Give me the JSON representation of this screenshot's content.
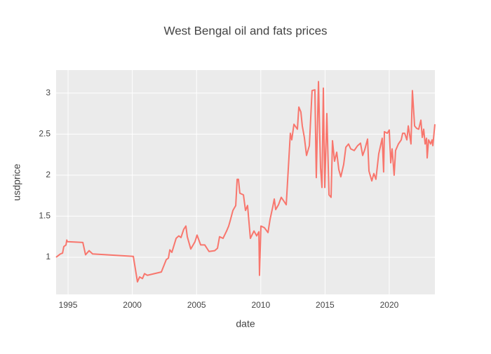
{
  "chart_data": {
    "type": "line",
    "title": "West Bengal oil and fats prices",
    "x_label": "date",
    "y_label": "usdprice",
    "x": [
      1994.07,
      1994.4,
      1994.57,
      1994.67,
      1994.84,
      1994.9,
      1994.95,
      1996.15,
      1996.36,
      1996.64,
      1996.91,
      2000.08,
      2000.4,
      2000.57,
      2000.79,
      2000.95,
      2001.17,
      2002.26,
      2002.64,
      2002.81,
      2002.92,
      2003.08,
      2003.41,
      2003.62,
      2003.79,
      2004.0,
      2004.17,
      2004.28,
      2004.55,
      2004.88,
      2005.04,
      2005.32,
      2005.64,
      2005.97,
      2006.41,
      2006.63,
      2006.79,
      2007.06,
      2007.34,
      2007.5,
      2007.61,
      2007.83,
      2008.05,
      2008.16,
      2008.26,
      2008.37,
      2008.65,
      2008.81,
      2008.97,
      2009.19,
      2009.47,
      2009.68,
      2009.85,
      2009.9,
      2010.01,
      2010.28,
      2010.56,
      2010.72,
      2010.94,
      2011.05,
      2011.16,
      2011.38,
      2011.59,
      2011.81,
      2011.98,
      2012.3,
      2012.41,
      2012.58,
      2012.85,
      2012.96,
      2013.12,
      2013.23,
      2013.39,
      2013.56,
      2013.78,
      2013.99,
      2014.21,
      2014.32,
      2014.49,
      2014.65,
      2014.76,
      2014.87,
      2014.98,
      2015.14,
      2015.31,
      2015.47,
      2015.58,
      2015.74,
      2015.91,
      2016.07,
      2016.23,
      2016.45,
      2016.62,
      2016.83,
      2017.0,
      2017.27,
      2017.54,
      2017.76,
      2017.93,
      2018.09,
      2018.31,
      2018.42,
      2018.64,
      2018.8,
      2018.96,
      2019.18,
      2019.45,
      2019.56,
      2019.62,
      2019.84,
      2020.0,
      2020.11,
      2020.22,
      2020.38,
      2020.49,
      2020.71,
      2020.93,
      2021.04,
      2021.2,
      2021.37,
      2021.48,
      2021.69,
      2021.8,
      2021.97,
      2022.13,
      2022.29,
      2022.46,
      2022.57,
      2022.68,
      2022.79,
      2022.9,
      2022.95,
      2023.06,
      2023.22,
      2023.33,
      2023.39,
      2023.55
    ],
    "series": [
      {
        "color": "#f8766d",
        "values": [
          1.0,
          1.04,
          1.05,
          1.13,
          1.15,
          1.21,
          1.19,
          1.18,
          1.03,
          1.08,
          1.04,
          1.01,
          0.7,
          0.76,
          0.74,
          0.8,
          0.78,
          0.82,
          0.97,
          0.99,
          1.09,
          1.06,
          1.23,
          1.26,
          1.24,
          1.34,
          1.38,
          1.25,
          1.1,
          1.19,
          1.27,
          1.15,
          1.15,
          1.07,
          1.08,
          1.11,
          1.25,
          1.23,
          1.32,
          1.38,
          1.44,
          1.57,
          1.63,
          1.95,
          1.95,
          1.78,
          1.76,
          1.57,
          1.63,
          1.23,
          1.32,
          1.26,
          1.31,
          0.78,
          1.38,
          1.36,
          1.3,
          1.46,
          1.62,
          1.71,
          1.58,
          1.64,
          1.73,
          1.68,
          1.64,
          2.51,
          2.43,
          2.62,
          2.56,
          2.83,
          2.77,
          2.6,
          2.46,
          2.24,
          2.36,
          3.03,
          3.04,
          1.97,
          3.14,
          2.09,
          1.85,
          3.06,
          1.85,
          2.75,
          1.76,
          1.73,
          2.42,
          2.17,
          2.28,
          2.07,
          1.98,
          2.13,
          2.34,
          2.38,
          2.32,
          2.3,
          2.36,
          2.39,
          2.24,
          2.31,
          2.44,
          2.05,
          1.93,
          2.02,
          1.95,
          2.26,
          2.45,
          2.04,
          2.53,
          2.51,
          2.55,
          2.15,
          2.32,
          2.0,
          2.3,
          2.38,
          2.43,
          2.51,
          2.51,
          2.43,
          2.6,
          2.38,
          3.03,
          2.6,
          2.57,
          2.56,
          2.67,
          2.46,
          2.56,
          2.38,
          2.45,
          2.21,
          2.43,
          2.38,
          2.43,
          2.36,
          2.62
        ]
      }
    ],
    "xlim": [
      1994.07,
      2023.55
    ],
    "xticks": [
      1995,
      2000,
      2005,
      2010,
      2015,
      2020
    ],
    "ylim": [
      0.547,
      3.28
    ],
    "yticks": [
      1,
      1.5,
      2,
      2.5,
      3
    ],
    "grid": true
  }
}
